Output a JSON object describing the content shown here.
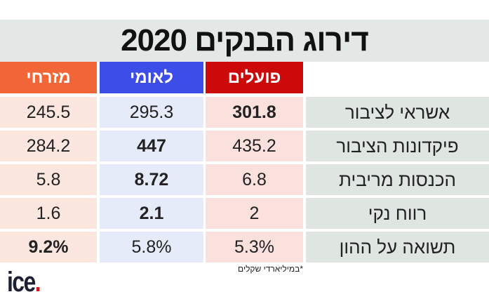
{
  "title": "דירוג הבנקים 2020",
  "headers": {
    "mizrahi": "מזרחי",
    "leumi": "לאומי",
    "poalim": "פועלים"
  },
  "colors": {
    "mizrahi": "#f26536",
    "leumi": "#3d4de8",
    "poalim": "#cc0a0a"
  },
  "rows": [
    {
      "label": "אשראי לציבור",
      "poalim": "301.8",
      "leumi": "295.3",
      "mizrahi": "245.5",
      "bold": "poalim"
    },
    {
      "label": "פיקדונות הציבור",
      "poalim": "435.2",
      "leumi": "447",
      "mizrahi": "284.2",
      "bold": "leumi"
    },
    {
      "label": "הכנסות מריבית",
      "poalim": "6.8",
      "leumi": "8.72",
      "mizrahi": "5.8",
      "bold": "leumi"
    },
    {
      "label": "רווח נקי",
      "poalim": "2",
      "leumi": "2.1",
      "mizrahi": "1.6",
      "bold": "leumi"
    },
    {
      "label": "תשואה על ההון",
      "poalim": "5.3%",
      "leumi": "5.8%",
      "mizrahi": "9.2%",
      "bold": "mizrahi"
    }
  ],
  "footnote": "*במיליארדי שקלים",
  "logo": "ice"
}
